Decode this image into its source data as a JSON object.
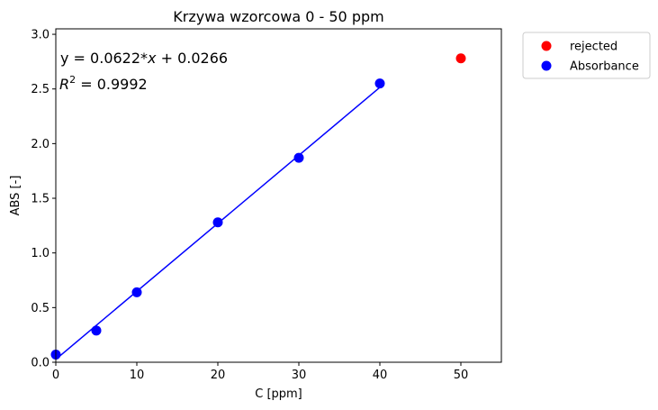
{
  "chart_data": {
    "type": "scatter",
    "title": "Krzywa wzorcowa 0 - 50 ppm",
    "xlabel": "C [ppm]",
    "ylabel": "ABS [-]",
    "xlim": [
      0,
      55
    ],
    "ylim": [
      0,
      3.05
    ],
    "xticks": [
      0,
      10,
      20,
      30,
      40,
      50
    ],
    "xtick_labels": [
      "0",
      "10",
      "20",
      "30",
      "40",
      "50"
    ],
    "yticks": [
      0,
      0.5,
      1.0,
      1.5,
      2.0,
      2.5,
      3.0
    ],
    "ytick_labels": [
      "0.0",
      "0.5",
      "1.0",
      "1.5",
      "2.0",
      "2.5",
      "3.0"
    ],
    "grid": false,
    "legend_position": "outside-top-right",
    "series": [
      {
        "name": "rejected",
        "color": "#ff0000",
        "x": [
          50
        ],
        "y": [
          2.78
        ]
      },
      {
        "name": "Absorbance",
        "color": "#0000ff",
        "x": [
          0,
          5,
          10,
          20,
          30,
          40
        ],
        "y": [
          0.07,
          0.29,
          0.64,
          1.28,
          1.87,
          2.55
        ]
      }
    ],
    "fit_line": {
      "color": "#0000ff",
      "slope": 0.0622,
      "intercept": 0.0266,
      "x_range": [
        0,
        40
      ]
    },
    "annotations": {
      "equation_prefix": "y = 0.0622*",
      "equation_var": "x",
      "equation_suffix": " + 0.0266",
      "r2_label": "R",
      "r2_sup": "2",
      "r2_value": " = 0.9992"
    }
  }
}
